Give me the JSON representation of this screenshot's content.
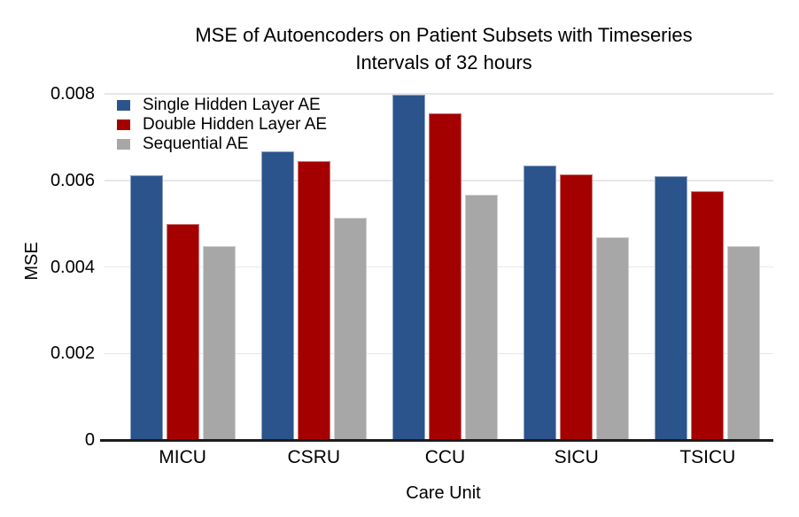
{
  "title": {
    "line1": "MSE of Autoencoders on Patient Subsets with Timeseries",
    "line2": "Intervals of 32 hours"
  },
  "chart_data": {
    "type": "bar",
    "title": "MSE of Autoencoders on Patient Subsets with Timeseries Intervals of 32 hours",
    "xlabel": "Care Unit",
    "ylabel": "MSE",
    "ylim": [
      0,
      0.008
    ],
    "yticks": [
      0,
      0.002,
      0.004,
      0.006,
      0.008
    ],
    "ytick_labels": [
      "0",
      "0.002",
      "0.004",
      "0.006",
      "0.008"
    ],
    "grid": true,
    "legend_position": "top-left",
    "categories": [
      "MICU",
      "CSRU",
      "CCU",
      "SICU",
      "TSICU"
    ],
    "series": [
      {
        "name": "Single Hidden Layer AE",
        "color": "#2b548c",
        "values": [
          0.00612,
          0.00668,
          0.00797,
          0.00635,
          0.0061
        ]
      },
      {
        "name": "Double Hidden Layer AE",
        "color": "#a40000",
        "values": [
          0.005,
          0.00645,
          0.00754,
          0.00614,
          0.00574
        ]
      },
      {
        "name": "Sequential AE",
        "color": "#a7a7a7",
        "values": [
          0.00448,
          0.00514,
          0.00567,
          0.00469,
          0.00449
        ]
      }
    ],
    "colors": {
      "gridline": "#e7e7e7",
      "axis_line": "#1c1c1c",
      "text": "#000000"
    }
  }
}
